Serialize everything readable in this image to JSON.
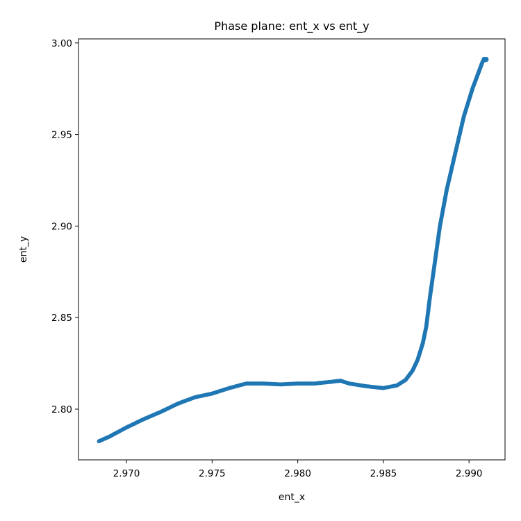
{
  "chart_data": {
    "type": "scatter",
    "title": "Phase plane: ent_x vs ent_y",
    "xlabel": "ent_x",
    "ylabel": "ent_y",
    "xlim": [
      2.9672,
      2.9921
    ],
    "ylim": [
      2.7723,
      3.0022
    ],
    "xticks": [
      "2.970",
      "2.975",
      "2.980",
      "2.985",
      "2.990"
    ],
    "yticks": [
      "2.80",
      "2.85",
      "2.90",
      "2.95",
      "3.00"
    ],
    "grid": false,
    "marker_color": "#1f77b4",
    "trajectory_anchors": [
      [
        2.9684,
        2.7825
      ],
      [
        2.969,
        2.785
      ],
      [
        2.97,
        2.79
      ],
      [
        2.971,
        2.7945
      ],
      [
        2.972,
        2.7985
      ],
      [
        2.973,
        2.803
      ],
      [
        2.974,
        2.8065
      ],
      [
        2.975,
        2.8085
      ],
      [
        2.976,
        2.8115
      ],
      [
        2.977,
        2.814
      ],
      [
        2.978,
        2.814
      ],
      [
        2.979,
        2.8135
      ],
      [
        2.98,
        2.814
      ],
      [
        2.981,
        2.814
      ],
      [
        2.982,
        2.815
      ],
      [
        2.9825,
        2.8155
      ],
      [
        2.983,
        2.814
      ],
      [
        2.984,
        2.8125
      ],
      [
        2.985,
        2.8115
      ],
      [
        2.9858,
        2.813
      ],
      [
        2.9863,
        2.816
      ],
      [
        2.9867,
        2.821
      ],
      [
        2.987,
        2.827
      ],
      [
        2.9873,
        2.836
      ],
      [
        2.9875,
        2.845
      ],
      [
        2.9877,
        2.86
      ],
      [
        2.988,
        2.88
      ],
      [
        2.9883,
        2.9
      ],
      [
        2.9887,
        2.92
      ],
      [
        2.9892,
        2.94
      ],
      [
        2.9897,
        2.96
      ],
      [
        2.9902,
        2.975
      ],
      [
        2.9906,
        2.985
      ],
      [
        2.9908,
        2.99
      ],
      [
        2.991,
        2.991
      ]
    ]
  }
}
